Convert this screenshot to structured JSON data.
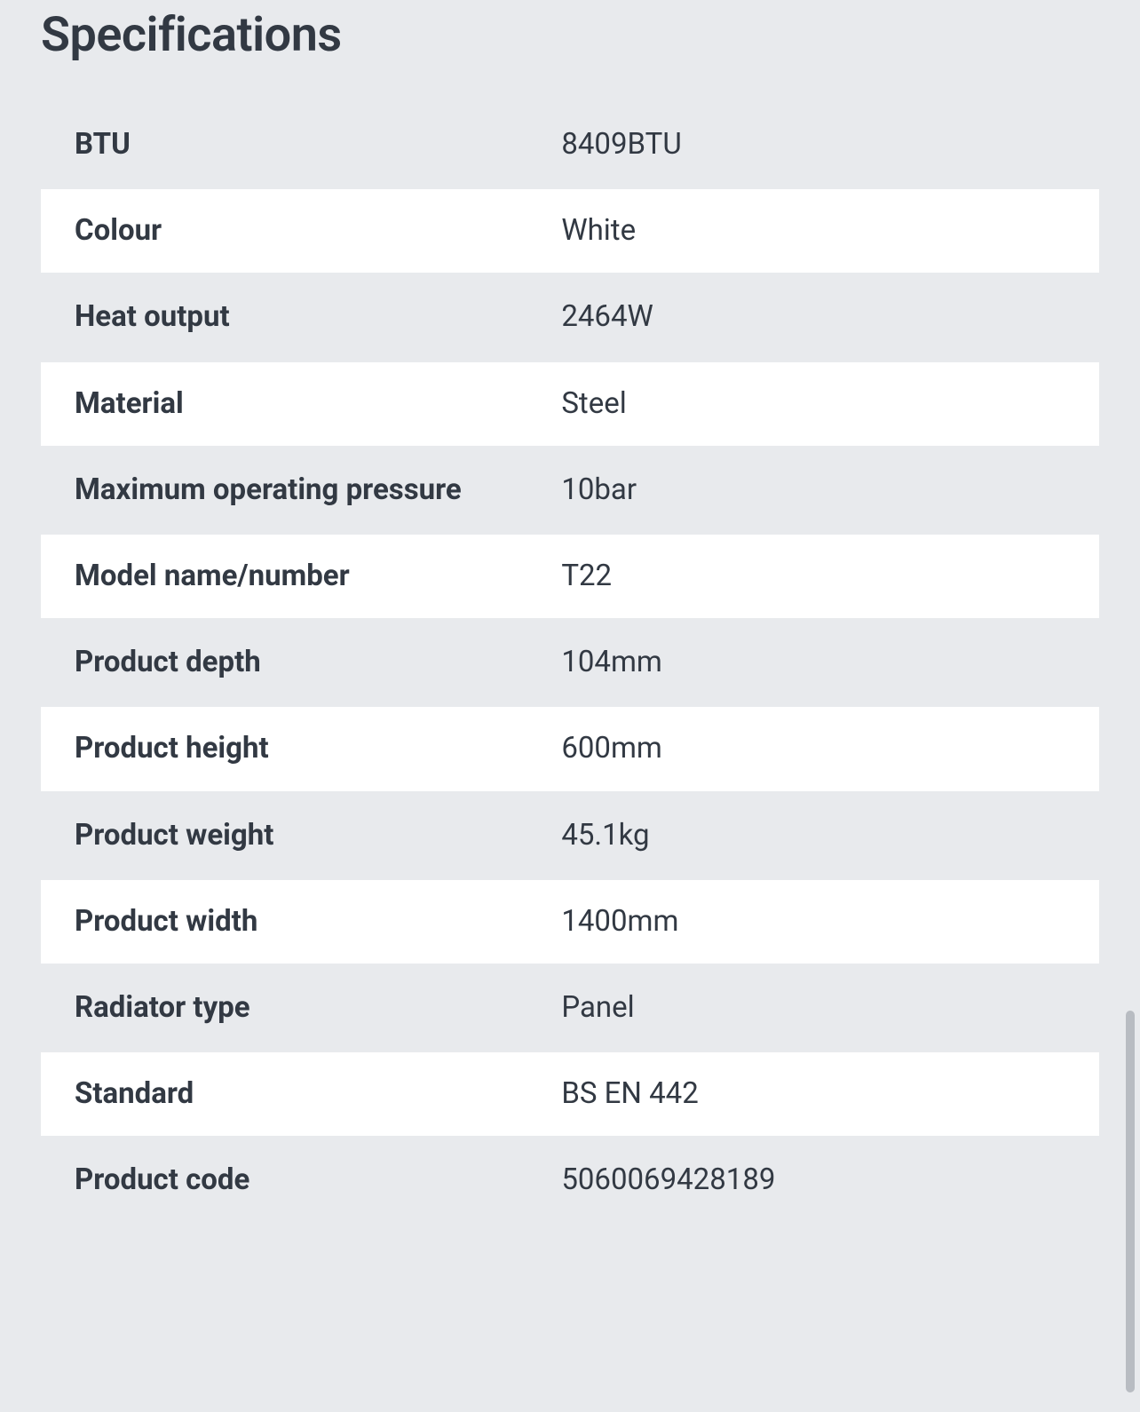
{
  "title": "Specifications",
  "colors": {
    "page_bg": "#e8eaed",
    "text": "#323943",
    "row_odd_bg": "#e8eaed",
    "row_even_bg": "#ffffff",
    "scrollbar": "#b8bcc2"
  },
  "typography": {
    "title_fontsize": 54,
    "title_weight": 600,
    "cell_fontsize": 33,
    "label_weight": 700,
    "value_weight": 400
  },
  "table": {
    "rows": [
      {
        "label": "BTU",
        "value": "8409BTU"
      },
      {
        "label": "Colour",
        "value": "White"
      },
      {
        "label": "Heat output",
        "value": "2464W"
      },
      {
        "label": "Material",
        "value": "Steel"
      },
      {
        "label": "Maximum operating pressure",
        "value": "10bar"
      },
      {
        "label": "Model name/number",
        "value": "T22"
      },
      {
        "label": "Product depth",
        "value": "104mm"
      },
      {
        "label": "Product height",
        "value": "600mm"
      },
      {
        "label": "Product weight",
        "value": "45.1kg"
      },
      {
        "label": "Product width",
        "value": "1400mm"
      },
      {
        "label": "Radiator type",
        "value": "Panel"
      },
      {
        "label": "Standard",
        "value": "BS EN 442"
      },
      {
        "label": "Product code",
        "value": "5060069428189"
      }
    ]
  }
}
